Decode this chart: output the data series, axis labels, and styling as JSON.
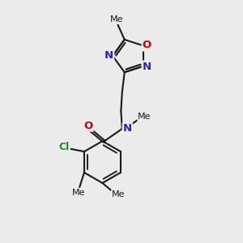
{
  "bg_color": "#ebebeb",
  "bond_color": "#1a1a1a",
  "bond_width": 1.5,
  "atom_colors": {
    "O": "#cc0000",
    "N": "#2222cc",
    "Cl": "#228b22",
    "C": "#1a1a1a"
  },
  "fontsizes": {
    "heteroatom": 9.5,
    "Cl": 9,
    "Me": 8
  }
}
